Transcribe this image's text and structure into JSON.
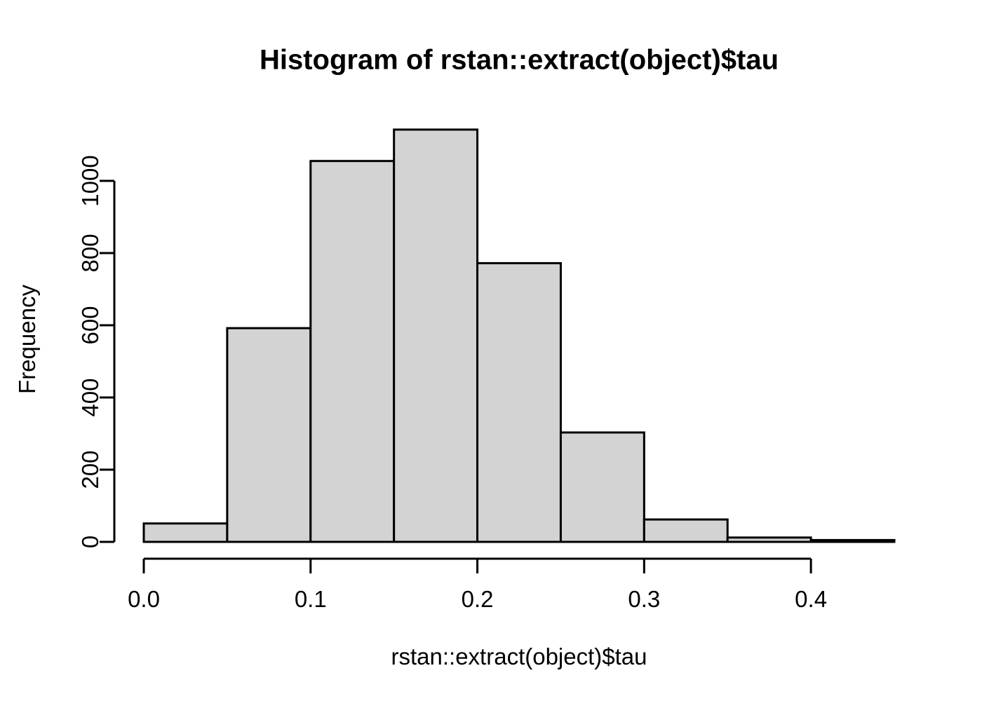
{
  "title": "Histogram of rstan::extract(object)$tau",
  "x_axis": {
    "label": "rstan::extract(object)$tau",
    "tick_labels": [
      "0.0",
      "0.1",
      "0.2",
      "0.3",
      "0.4"
    ]
  },
  "y_axis": {
    "label": "Frequency",
    "tick_labels": [
      "0",
      "200",
      "400",
      "600",
      "800",
      "1000"
    ]
  },
  "colors": {
    "background": "#FFFFFF",
    "text": "#000000",
    "bar_fill": "#D3D3D3",
    "bar_border": "#000000",
    "axis": "#000000"
  },
  "chart_data": {
    "type": "bar",
    "subtype": "histogram",
    "title": "Histogram of rstan::extract(object)$tau",
    "xlabel": "rstan::extract(object)$tau",
    "ylabel": "Frequency",
    "bin_width": 0.05,
    "bin_edges": [
      0.0,
      0.05,
      0.1,
      0.15,
      0.2,
      0.25,
      0.3,
      0.35,
      0.4,
      0.45
    ],
    "counts": [
      51,
      592,
      1055,
      1142,
      772,
      303,
      62,
      12,
      5
    ],
    "xlim": [
      0.0,
      0.45
    ],
    "ylim": [
      0,
      1150
    ],
    "x_ticks": {
      "values": [
        0.0,
        0.1,
        0.2,
        0.3,
        0.4
      ],
      "labels": [
        "0.0",
        "0.1",
        "0.2",
        "0.3",
        "0.4"
      ]
    },
    "y_ticks": {
      "values": [
        0,
        200,
        400,
        600,
        800,
        1000
      ],
      "labels": [
        "0",
        "200",
        "400",
        "600",
        "800",
        "1000"
      ]
    },
    "grid": false,
    "legend": null,
    "bar_fill": "#D3D3D3",
    "bar_stroke": "#000000"
  }
}
